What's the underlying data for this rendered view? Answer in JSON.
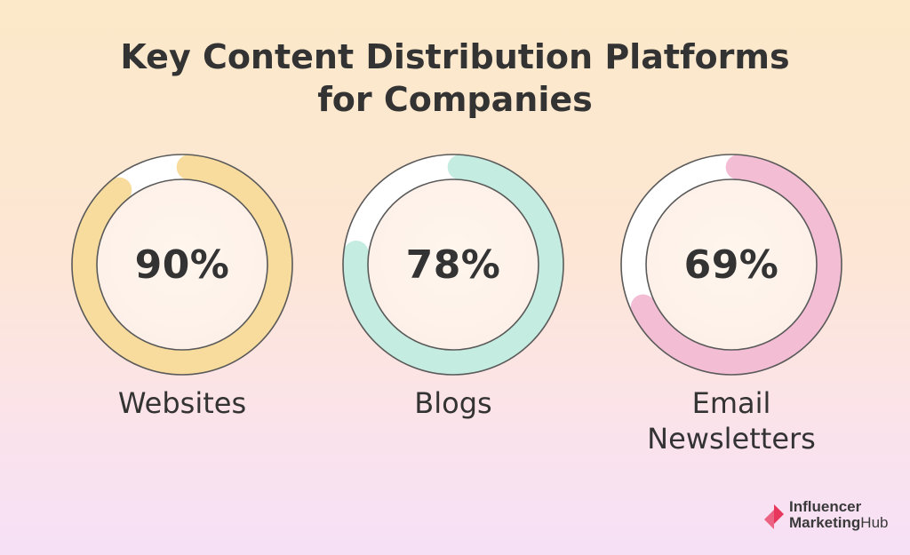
{
  "title": {
    "line1": "Key Content Distribution Platforms",
    "line2": "for Companies"
  },
  "chart_data": [
    {
      "type": "pie",
      "style": "donut",
      "value": 90,
      "display": "90%",
      "label_lines": [
        "Websites"
      ],
      "color": "#f8dc9e",
      "track_color": "#ffffff"
    },
    {
      "type": "pie",
      "style": "donut",
      "value": 78,
      "display": "78%",
      "label_lines": [
        "Blogs"
      ],
      "color": "#c5ece0",
      "track_color": "#ffffff"
    },
    {
      "type": "pie",
      "style": "donut",
      "value": 69,
      "display": "69%",
      "label_lines": [
        "Email",
        "Newsletters"
      ],
      "color": "#f3bdd4",
      "track_color": "#ffffff"
    }
  ],
  "brand": {
    "line1": "Influencer",
    "line2_bold": "Marketing",
    "line2_rest": "Hub",
    "mark_color": "#e8375c"
  }
}
